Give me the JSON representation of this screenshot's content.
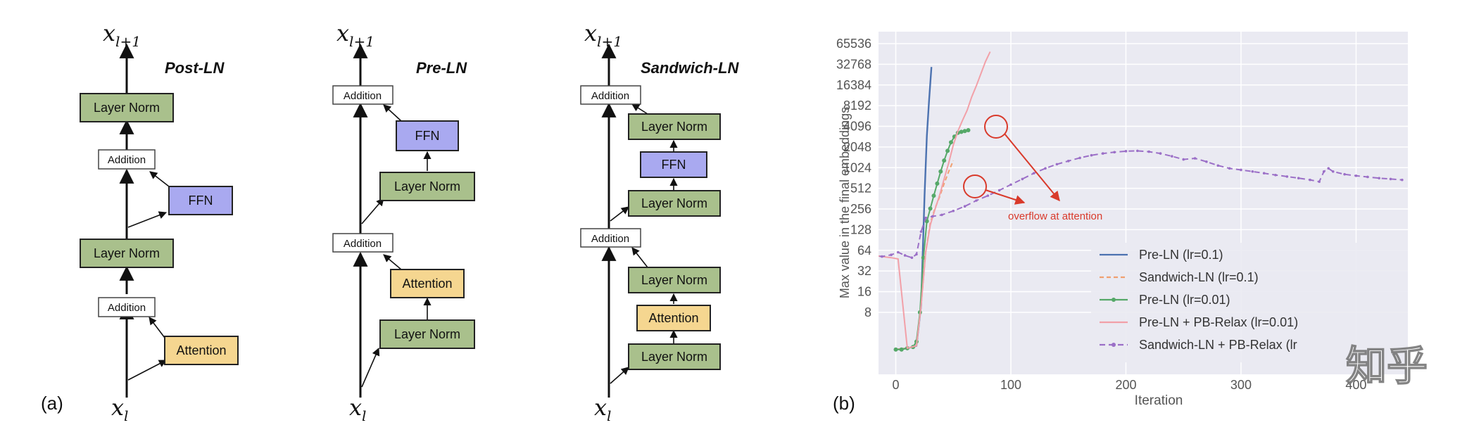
{
  "figure": {
    "label_a": "(a)",
    "label_b": "(b)",
    "watermark": "知乎"
  },
  "diagrams": [
    {
      "title": "Post-LN",
      "input": "x_l",
      "output": "x_{l+1}",
      "blocks": [
        "Layer Norm",
        "Addition",
        "FFN",
        "Layer Norm",
        "Addition",
        "Attention"
      ]
    },
    {
      "title": "Pre-LN",
      "input": "x_l",
      "output": "x_{l+1}",
      "blocks": [
        "Addition",
        "FFN",
        "Layer Norm",
        "Addition",
        "Attention",
        "Layer Norm"
      ]
    },
    {
      "title": "Sandwich-LN",
      "input": "x_l",
      "output": "x_{l+1}",
      "blocks": [
        "Addition",
        "Layer Norm",
        "FFN",
        "Layer Norm",
        "Addition",
        "Layer Norm",
        "Attention",
        "Layer Norm"
      ]
    }
  ],
  "colors": {
    "layer_norm": "#a9c08c",
    "ffn": "#a9a9f0",
    "attention": "#f5d690",
    "addition": "#ffffff",
    "plot_bg": "#eaeaf2",
    "annotation": "#d93a2b"
  },
  "chart_data": {
    "type": "line",
    "xlabel": "Iteration",
    "ylabel": "Max value in the final embeddings",
    "y_scale": "log2",
    "x_ticks": [
      "0",
      "100",
      "200",
      "300",
      "400"
    ],
    "y_ticks": [
      "8",
      "16",
      "32",
      "64",
      "128",
      "256",
      "512",
      "1024",
      "2048",
      "4096",
      "8192",
      "16384",
      "32768",
      "65536"
    ],
    "xlim": [
      -15,
      445
    ],
    "ylim": [
      1,
      98000
    ],
    "grid": true,
    "legend_position": "lower-right",
    "annotation": "overflow at attention",
    "legend": [
      "Pre-LN (lr=0.1)",
      "Sandwich-LN (lr=0.1)",
      "Pre-LN (lr=0.01)",
      "Pre-LN + PB-Relax (lr=0.01)",
      "Sandwich-LN + PB-Relax (lr"
    ],
    "series": [
      {
        "name": "Pre-LN (lr=0.1)",
        "color": "#4c72b0",
        "dash": "",
        "marker": "",
        "x": [
          0,
          10,
          18,
          22,
          25,
          27,
          29,
          31
        ],
        "y": [
          2.3,
          2.4,
          2.6,
          10,
          400,
          3000,
          10000,
          30000
        ]
      },
      {
        "name": "Sandwich-LN (lr=0.1)",
        "color": "#f0a070",
        "dash": "6,4",
        "marker": "",
        "x": [
          0,
          10,
          18,
          22,
          26,
          30,
          34,
          38,
          42,
          46,
          50
        ],
        "y": [
          2.3,
          2.4,
          2.6,
          10,
          60,
          160,
          260,
          380,
          600,
          900,
          1300
        ]
      },
      {
        "name": "Pre-LN (lr=0.01)",
        "color": "#55a868",
        "dash": "",
        "marker": "circle",
        "x": [
          0,
          5,
          10,
          15,
          18,
          21,
          24,
          27,
          30,
          33,
          36,
          39,
          42,
          45,
          48,
          51,
          54,
          57,
          60,
          63
        ],
        "y": [
          2.3,
          2.3,
          2.4,
          2.5,
          3,
          8,
          50,
          170,
          260,
          400,
          600,
          900,
          1300,
          1800,
          2400,
          2900,
          3300,
          3400,
          3500,
          3600
        ]
      },
      {
        "name": "Pre-LN + PB-Relax (lr=0.01)",
        "color": "#f2a0a8",
        "dash": "",
        "marker": "",
        "x": [
          -22,
          -12,
          -4,
          2,
          10,
          18,
          22,
          26,
          30,
          34,
          38,
          42,
          46,
          50,
          54,
          58,
          62,
          66,
          70,
          74,
          78,
          82
        ],
        "y": [
          55,
          52,
          50,
          48,
          2.4,
          2.6,
          10,
          60,
          150,
          250,
          400,
          700,
          1200,
          2200,
          3500,
          5000,
          7000,
          11000,
          16000,
          24000,
          36000,
          50000
        ]
      },
      {
        "name": "Sandwich-LN + PB-Relax (lr",
        "color": "#9b6fc7",
        "dash": "8,5",
        "marker": "dot",
        "x": [
          -22,
          -12,
          -4,
          2,
          8,
          14,
          18,
          22,
          26,
          32,
          40,
          50,
          60,
          70,
          80,
          90,
          100,
          110,
          120,
          130,
          140,
          150,
          160,
          170,
          180,
          190,
          200,
          210,
          220,
          230,
          240,
          250,
          260,
          270,
          280,
          290,
          300,
          310,
          320,
          330,
          340,
          350,
          360,
          368,
          372,
          376,
          380,
          390,
          400,
          410,
          420,
          430,
          440
        ],
        "y": [
          55,
          52,
          55,
          60,
          54,
          50,
          56,
          120,
          190,
          200,
          210,
          240,
          280,
          340,
          400,
          480,
          580,
          700,
          850,
          1000,
          1150,
          1280,
          1420,
          1550,
          1650,
          1720,
          1780,
          1800,
          1750,
          1650,
          1500,
          1350,
          1400,
          1250,
          1100,
          1000,
          950,
          900,
          850,
          800,
          760,
          720,
          680,
          640,
          900,
          1000,
          900,
          820,
          780,
          750,
          720,
          700,
          680
        ]
      }
    ]
  }
}
